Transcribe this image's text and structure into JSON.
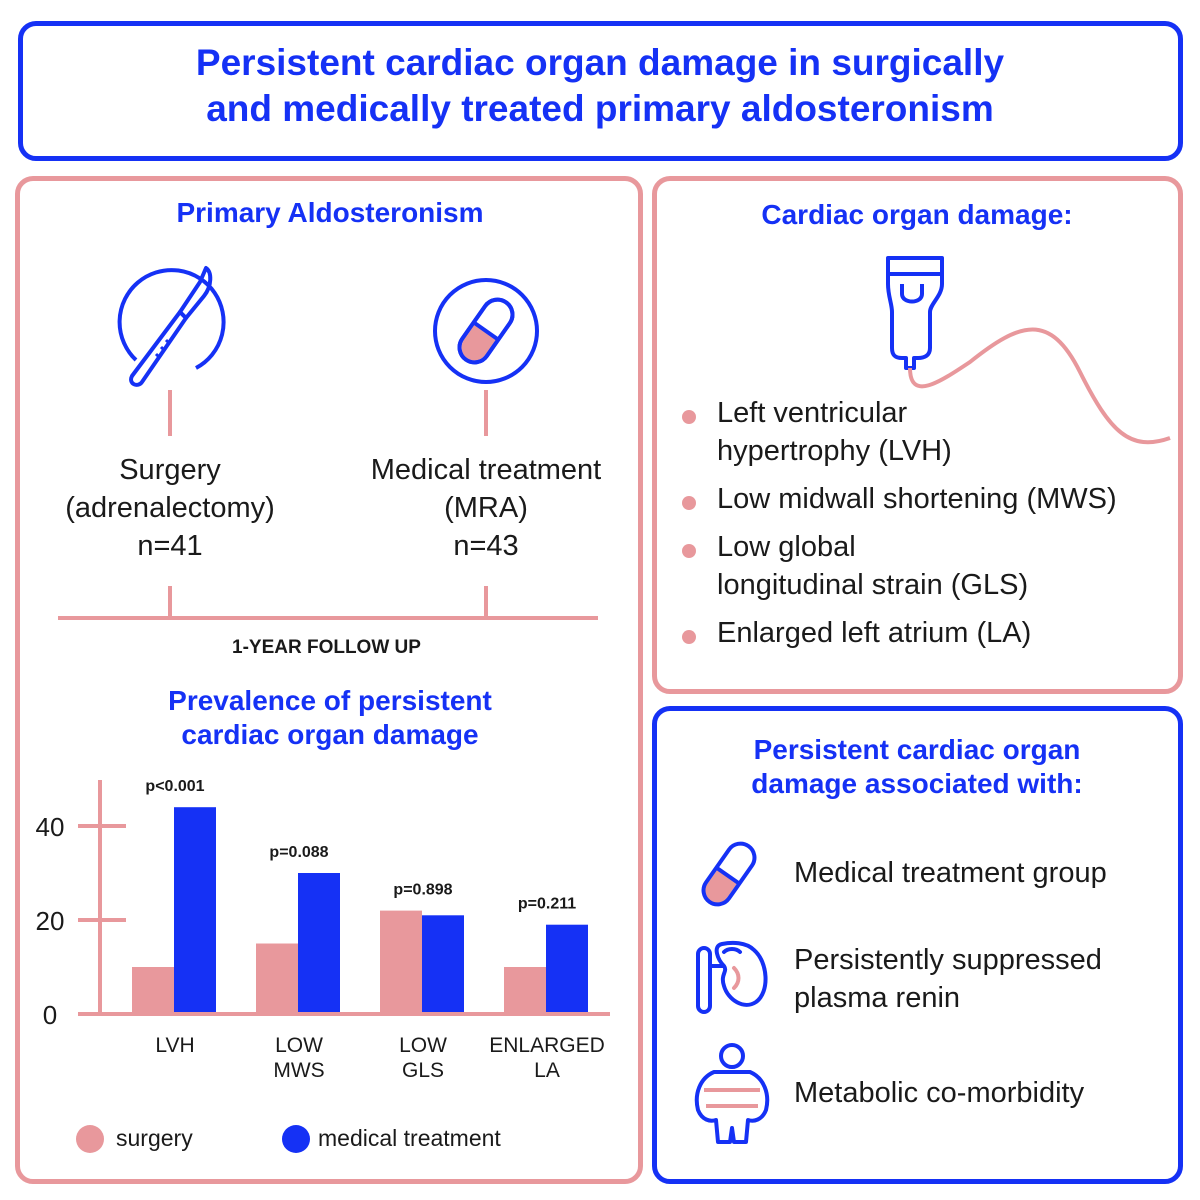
{
  "title": {
    "line1": "Persistent cardiac organ damage in surgically",
    "line2": "and medically treated primary aldosteronism"
  },
  "left_panel": {
    "heading": "Primary Aldosteronism",
    "surgery": {
      "line1": "Surgery",
      "line2": "(adrenalectomy)",
      "line3": "n=41"
    },
    "medical": {
      "line1": "Medical treatment",
      "line2": "(MRA)",
      "line3": "n=43"
    },
    "followup": "1-YEAR FOLLOW UP",
    "chart_heading": {
      "line1": "Prevalence of persistent",
      "line2": "cardiac organ damage"
    }
  },
  "right_top": {
    "heading": "Cardiac organ damage:",
    "bullets": [
      {
        "line1": "Left ventricular",
        "line2": "hypertrophy (LVH)"
      },
      {
        "line1": "Low midwall shortening (MWS)",
        "line2": ""
      },
      {
        "line1": "Low global",
        "line2": "longitudinal strain (GLS)"
      },
      {
        "line1": "Enlarged left atrium (LA)",
        "line2": ""
      }
    ]
  },
  "right_bottom": {
    "heading": {
      "line1": "Persistent cardiac organ",
      "line2": "damage associated with:"
    },
    "items": [
      {
        "line1": "Medical treatment group",
        "line2": "",
        "icon": "pill-icon"
      },
      {
        "line1": "Persistently suppressed",
        "line2": "plasma renin",
        "icon": "kidney-icon"
      },
      {
        "line1": "Metabolic co-morbidity",
        "line2": "",
        "icon": "obese-body-icon"
      }
    ]
  },
  "colors": {
    "blue": "#1531f5",
    "pink": "#e8989c",
    "text": "#1a1a1a"
  },
  "chart_data": {
    "type": "bar",
    "categories": [
      "LVH",
      "LOW MWS",
      "LOW GLS",
      "ENLARGED LA"
    ],
    "category_lines": [
      [
        "LVH"
      ],
      [
        "LOW",
        "MWS"
      ],
      [
        "LOW",
        "GLS"
      ],
      [
        "ENLARGED",
        "LA"
      ]
    ],
    "series": [
      {
        "name": "surgery",
        "values": [
          10,
          15,
          22,
          10
        ],
        "color": "#e8989c"
      },
      {
        "name": "medical treatment",
        "values": [
          44,
          30,
          21,
          19
        ],
        "color": "#1531f5"
      }
    ],
    "p_values": [
      "p<0.001",
      "p=0.088",
      "p=0.898",
      "p=0.211"
    ],
    "yticks": [
      0,
      20,
      40
    ],
    "ylim": [
      0,
      50
    ],
    "legend_position": "bottom"
  }
}
